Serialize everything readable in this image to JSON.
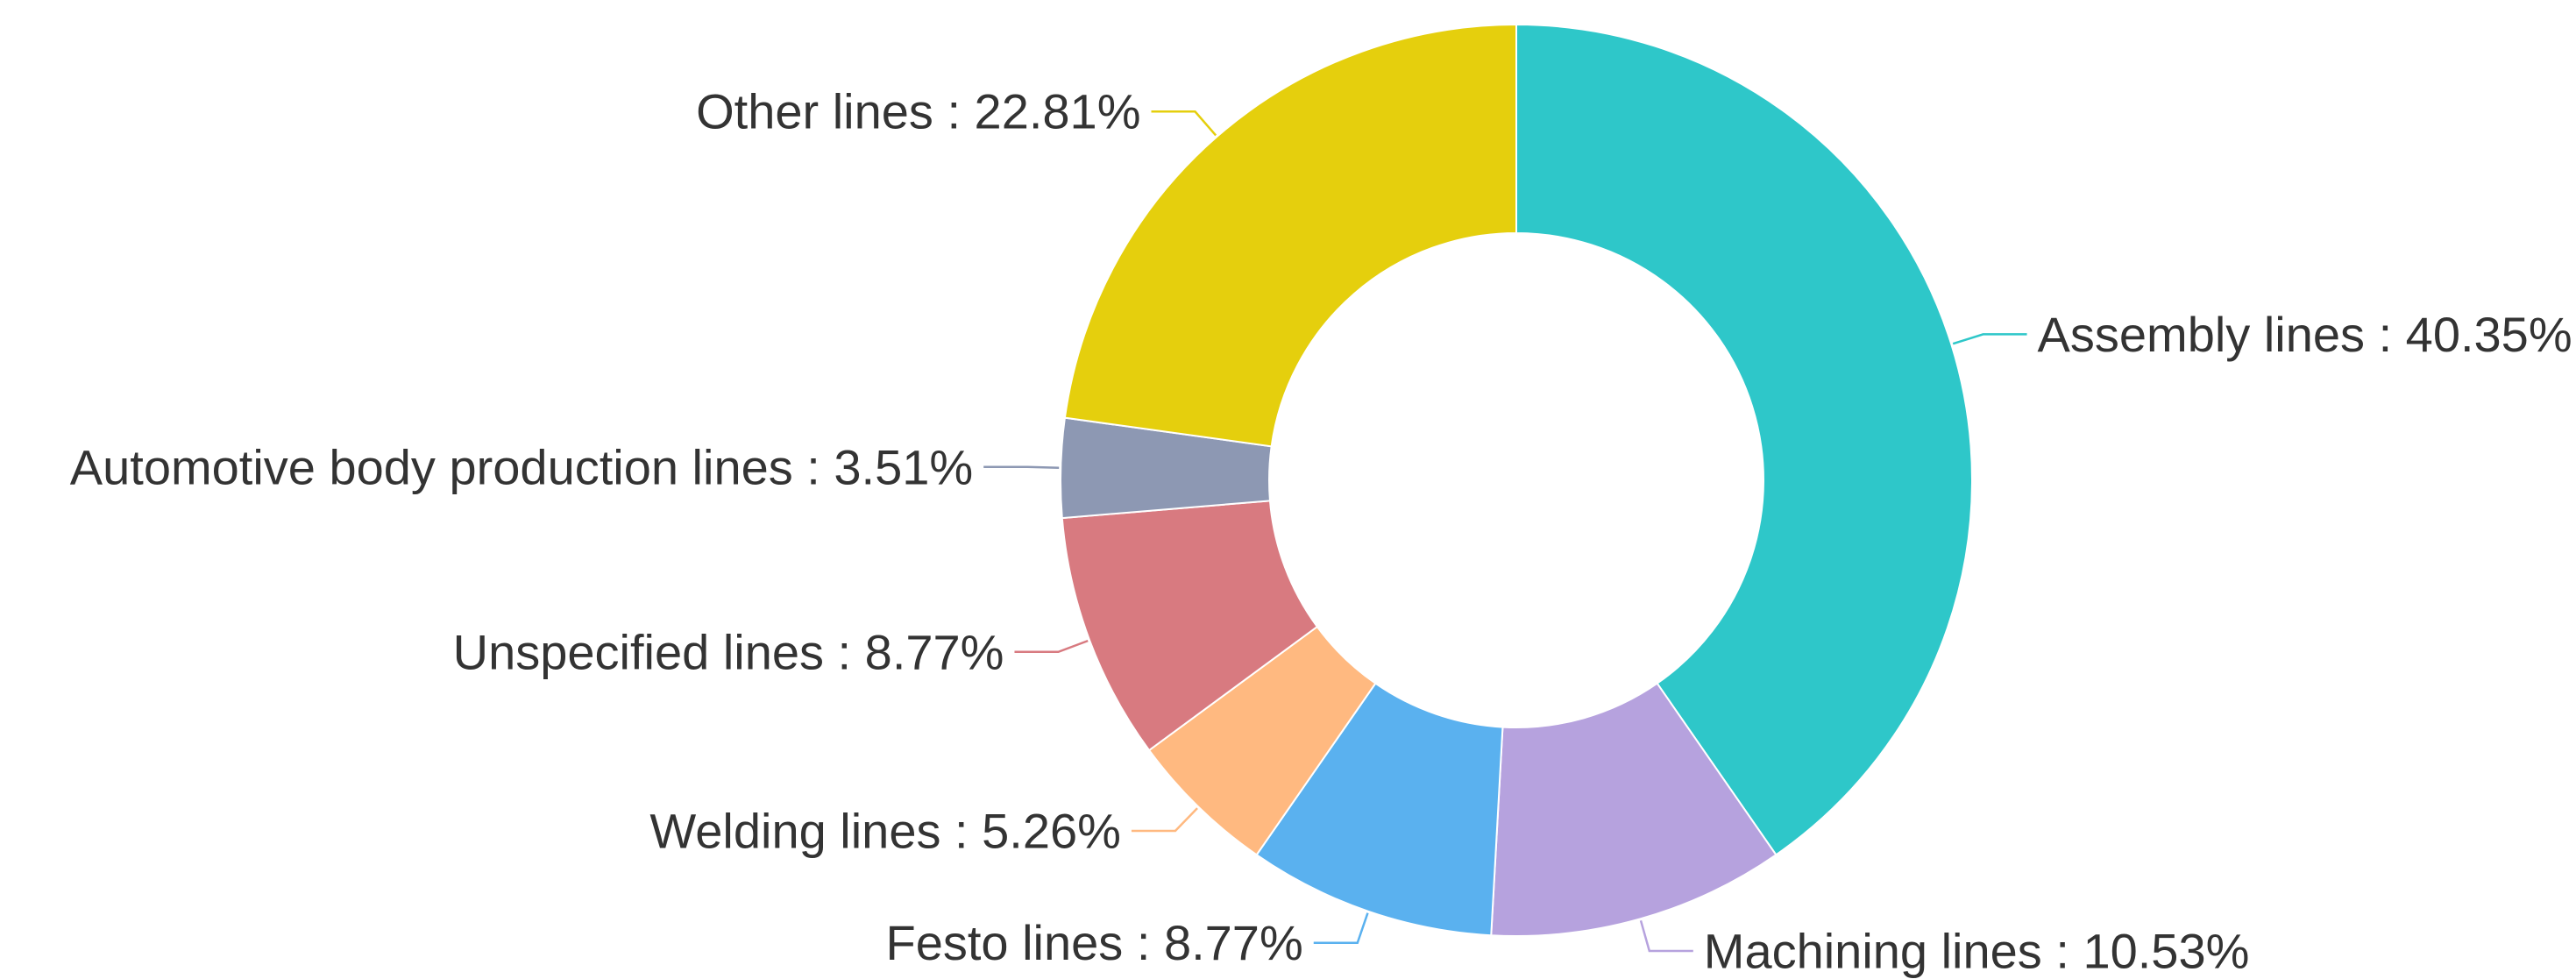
{
  "chart_data": {
    "type": "pie",
    "donut": true,
    "label_format": "{name} : {value}%",
    "slices": [
      {
        "name": "Assembly lines",
        "value": 40.35,
        "color": "#2ec7c9"
      },
      {
        "name": "Machining lines",
        "value": 10.53,
        "color": "#b6a2de"
      },
      {
        "name": "Festo lines",
        "value": 8.77,
        "color": "#5ab1ef"
      },
      {
        "name": "Welding lines",
        "value": 5.26,
        "color": "#ffb980"
      },
      {
        "name": "Unspecified lines",
        "value": 8.77,
        "color": "#d87a80"
      },
      {
        "name": "Automotive body production lines",
        "value": 3.51,
        "color": "#8d98b3"
      },
      {
        "name": "Other lines",
        "value": 22.81,
        "color": "#e5cf0d"
      }
    ]
  }
}
